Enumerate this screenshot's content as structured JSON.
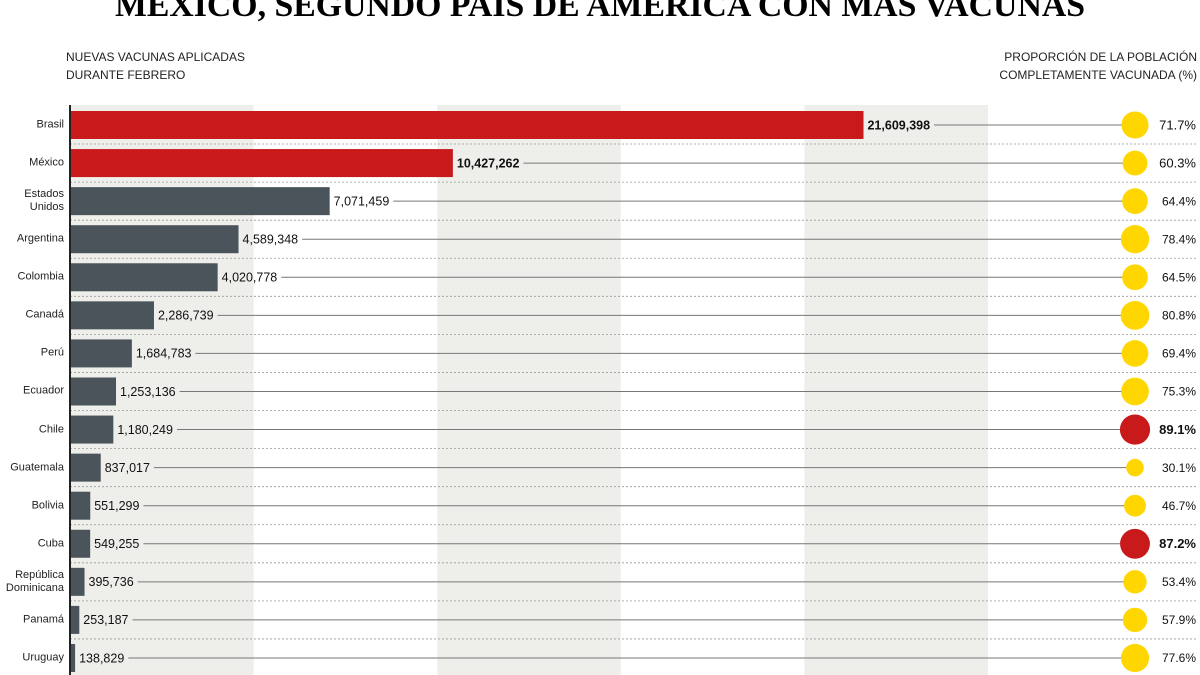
{
  "chart_data": {
    "type": "bar",
    "title": "MÉXICO, SEGUNDO PAÍS DE AMÉRICA CON MÁS VACUNAS",
    "categories": [
      "Brasil",
      "México",
      "Estados Unidos",
      "Argentina",
      "Colombia",
      "Canadá",
      "Perú",
      "Ecuador",
      "Chile",
      "Guatemala",
      "Bolivia",
      "Cuba",
      "República Dominicana",
      "Panamá",
      "Uruguay"
    ],
    "xlim": [
      0,
      25000000
    ],
    "series": [
      {
        "name": "NUEVAS VACUNAS APLICADAS DURANTE FEBRERO",
        "color": "#4a545a",
        "colors": [
          "#c8191b",
          "#c8191b",
          "#4a545a",
          "#4a545a",
          "#4a545a",
          "#4a545a",
          "#4a545a",
          "#4a545a",
          "#4a545a",
          "#4a545a",
          "#4a545a",
          "#4a545a",
          "#4a545a",
          "#4a545a",
          "#4a545a"
        ],
        "values": [
          21609398,
          10427262,
          7071459,
          4589348,
          4020778,
          2286739,
          1684783,
          1253136,
          1180249,
          837017,
          551299,
          549255,
          395736,
          253187,
          138829
        ],
        "value_labels": [
          "21,609,398",
          "10,427,262",
          "7,071,459",
          "4,589,348",
          "4,020,778",
          "2,286,739",
          "1,684,783",
          "1,253,136",
          "1,180,249",
          "837,017",
          "551,299",
          "549,255",
          "395,736",
          "253,187",
          "138,829"
        ]
      },
      {
        "name": "PROPORCIÓN DE LA POBLACIÓN COMPLETAMENTE VACUNADA (%)",
        "color": "#ffd600",
        "colors": [
          "#ffd600",
          "#ffd600",
          "#ffd600",
          "#ffd600",
          "#ffd600",
          "#ffd600",
          "#ffd600",
          "#ffd600",
          "#c8191b",
          "#ffd600",
          "#ffd600",
          "#c8191b",
          "#ffd600",
          "#ffd600",
          "#ffd600"
        ],
        "values": [
          71.7,
          60.3,
          64.4,
          78.4,
          64.5,
          80.8,
          69.4,
          75.3,
          89.1,
          30.1,
          46.7,
          87.2,
          53.4,
          57.9,
          77.6
        ],
        "value_labels": [
          "71.7%",
          "60.3%",
          "64.4%",
          "78.4%",
          "64.5%",
          "80.8%",
          "69.4%",
          "75.3%",
          "89.1%",
          "30.1%",
          "46.7%",
          "87.2%",
          "53.4%",
          "57.9%",
          "77.6%"
        ]
      }
    ]
  }
}
